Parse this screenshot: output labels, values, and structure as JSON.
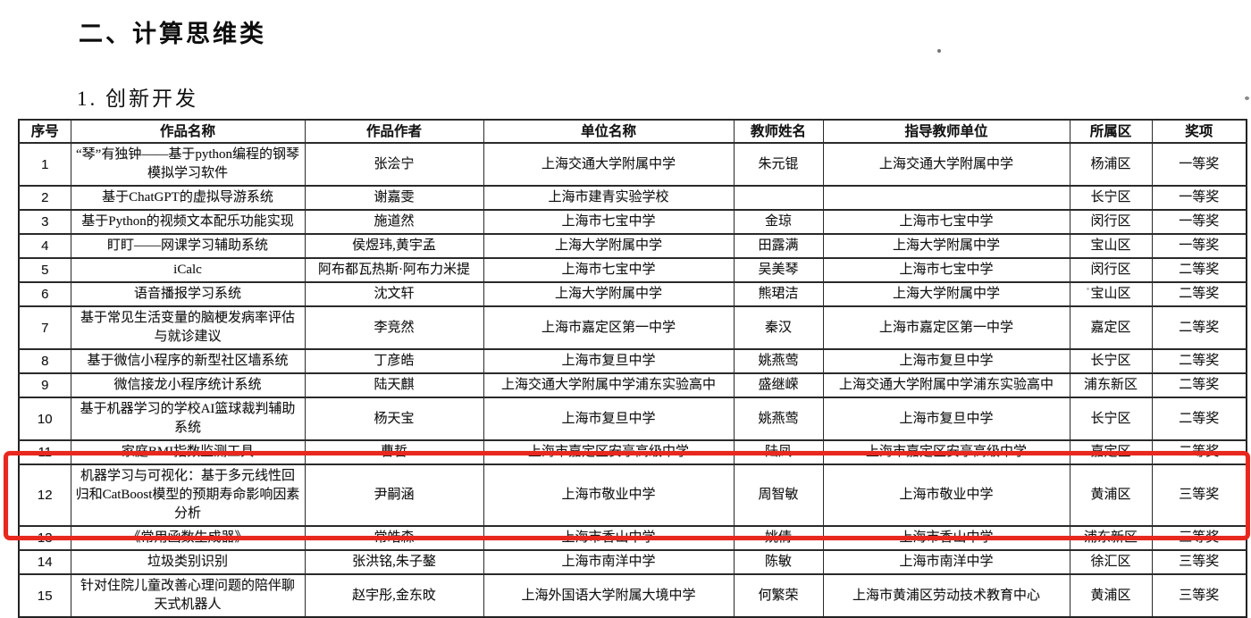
{
  "page": {
    "section_title": "二、计算思维类",
    "subsection_title": "1. 创新开发"
  },
  "table": {
    "headers": [
      "序号",
      "作品名称",
      "作品作者",
      "单位名称",
      "教师姓名",
      "指导教师单位",
      "所属区",
      "奖项"
    ],
    "rows": [
      {
        "no": "1",
        "title": "“琴”有独钟——基于python编程的钢琴模拟学习软件",
        "authors": "张浍宁",
        "school": "上海交通大学附属中学",
        "teacher": "朱元锟",
        "teacher_unit": "上海交通大学附属中学",
        "district": "杨浦区",
        "award": "一等奖"
      },
      {
        "no": "2",
        "title": "基于ChatGPT的虚拟导游系统",
        "authors": "谢嘉雯",
        "school": "上海市建青实验学校",
        "teacher": "",
        "teacher_unit": "",
        "district": "长宁区",
        "award": "一等奖"
      },
      {
        "no": "3",
        "title": "基于Python的视频文本配乐功能实现",
        "authors": "施道然",
        "school": "上海市七宝中学",
        "teacher": "金琼",
        "teacher_unit": "上海市七宝中学",
        "district": "闵行区",
        "award": "一等奖"
      },
      {
        "no": "4",
        "title": "盯盯——网课学习辅助系统",
        "authors": "侯煜玮,黄宇孟",
        "school": "上海大学附属中学",
        "teacher": "田露满",
        "teacher_unit": "上海大学附属中学",
        "district": "宝山区",
        "award": "一等奖"
      },
      {
        "no": "5",
        "title": "iCalc",
        "authors": "阿布都瓦热斯·阿布力米提",
        "school": "上海市七宝中学",
        "teacher": "吴美琴",
        "teacher_unit": "上海市七宝中学",
        "district": "闵行区",
        "award": "二等奖"
      },
      {
        "no": "6",
        "title": "语音播报学习系统",
        "authors": "沈文轩",
        "school": "上海大学附属中学",
        "teacher": "熊珺洁",
        "teacher_unit": "上海大学附属中学",
        "district": "宝山区",
        "award": "二等奖"
      },
      {
        "no": "7",
        "title": "基于常见生活变量的脑梗发病率评估与就诊建议",
        "authors": "李竞然",
        "school": "上海市嘉定区第一中学",
        "teacher": "秦汉",
        "teacher_unit": "上海市嘉定区第一中学",
        "district": "嘉定区",
        "award": "二等奖"
      },
      {
        "no": "8",
        "title": "基于微信小程序的新型社区墙系统",
        "authors": "丁彦皓",
        "school": "上海市复旦中学",
        "teacher": "姚燕莺",
        "teacher_unit": "上海市复旦中学",
        "district": "长宁区",
        "award": "二等奖"
      },
      {
        "no": "9",
        "title": "微信接龙小程序统计系统",
        "authors": "陆天麒",
        "school": "上海交通大学附属中学浦东实验高中",
        "teacher": "盛继嵘",
        "teacher_unit": "上海交通大学附属中学浦东实验高中",
        "district": "浦东新区",
        "award": "二等奖"
      },
      {
        "no": "10",
        "title": "基于机器学习的学校AI篮球裁判辅助系统",
        "authors": "杨天宝",
        "school": "上海市复旦中学",
        "teacher": "姚燕莺",
        "teacher_unit": "上海市复旦中学",
        "district": "长宁区",
        "award": "二等奖"
      },
      {
        "no": "11",
        "title": "家庭BMI指数监测工具",
        "authors": "曹哲",
        "school": "上海市嘉定区安亭高级中学",
        "teacher": "陆凤",
        "teacher_unit": "上海市嘉定区安亭高级中学",
        "district": "嘉定区",
        "award": "二等奖"
      },
      {
        "no": "12",
        "title": "机器学习与可视化：基于多元线性回归和CatBoost模型的预期寿命影响因素分析",
        "authors": "尹嗣涵",
        "school": "上海市敬业中学",
        "teacher": "周智敏",
        "teacher_unit": "上海市敬业中学",
        "district": "黄浦区",
        "award": "三等奖"
      },
      {
        "no": "13",
        "title": "《常用函数生成器》",
        "authors": "常皓森",
        "school": "上海市香山中学",
        "teacher": "姚倩",
        "teacher_unit": "上海市香山中学",
        "district": "浦东新区",
        "award": "三等奖"
      },
      {
        "no": "14",
        "title": "垃圾类别识别",
        "authors": "张洪铭,朱子鏊",
        "school": "上海市南洋中学",
        "teacher": "陈敏",
        "teacher_unit": "上海市南洋中学",
        "district": "徐汇区",
        "award": "三等奖"
      },
      {
        "no": "15",
        "title": "针对住院儿童改善心理问题的陪伴聊天式机器人",
        "authors": "赵宇彤,金东旼",
        "school": "上海外国语大学附属大境中学",
        "teacher": "何繁荣",
        "teacher_unit": "上海市黄浦区劳动技术教育中心",
        "district": "黄浦区",
        "award": "三等奖"
      }
    ],
    "highlighted_row_no": "12",
    "highlight_color": "#e8281e"
  }
}
